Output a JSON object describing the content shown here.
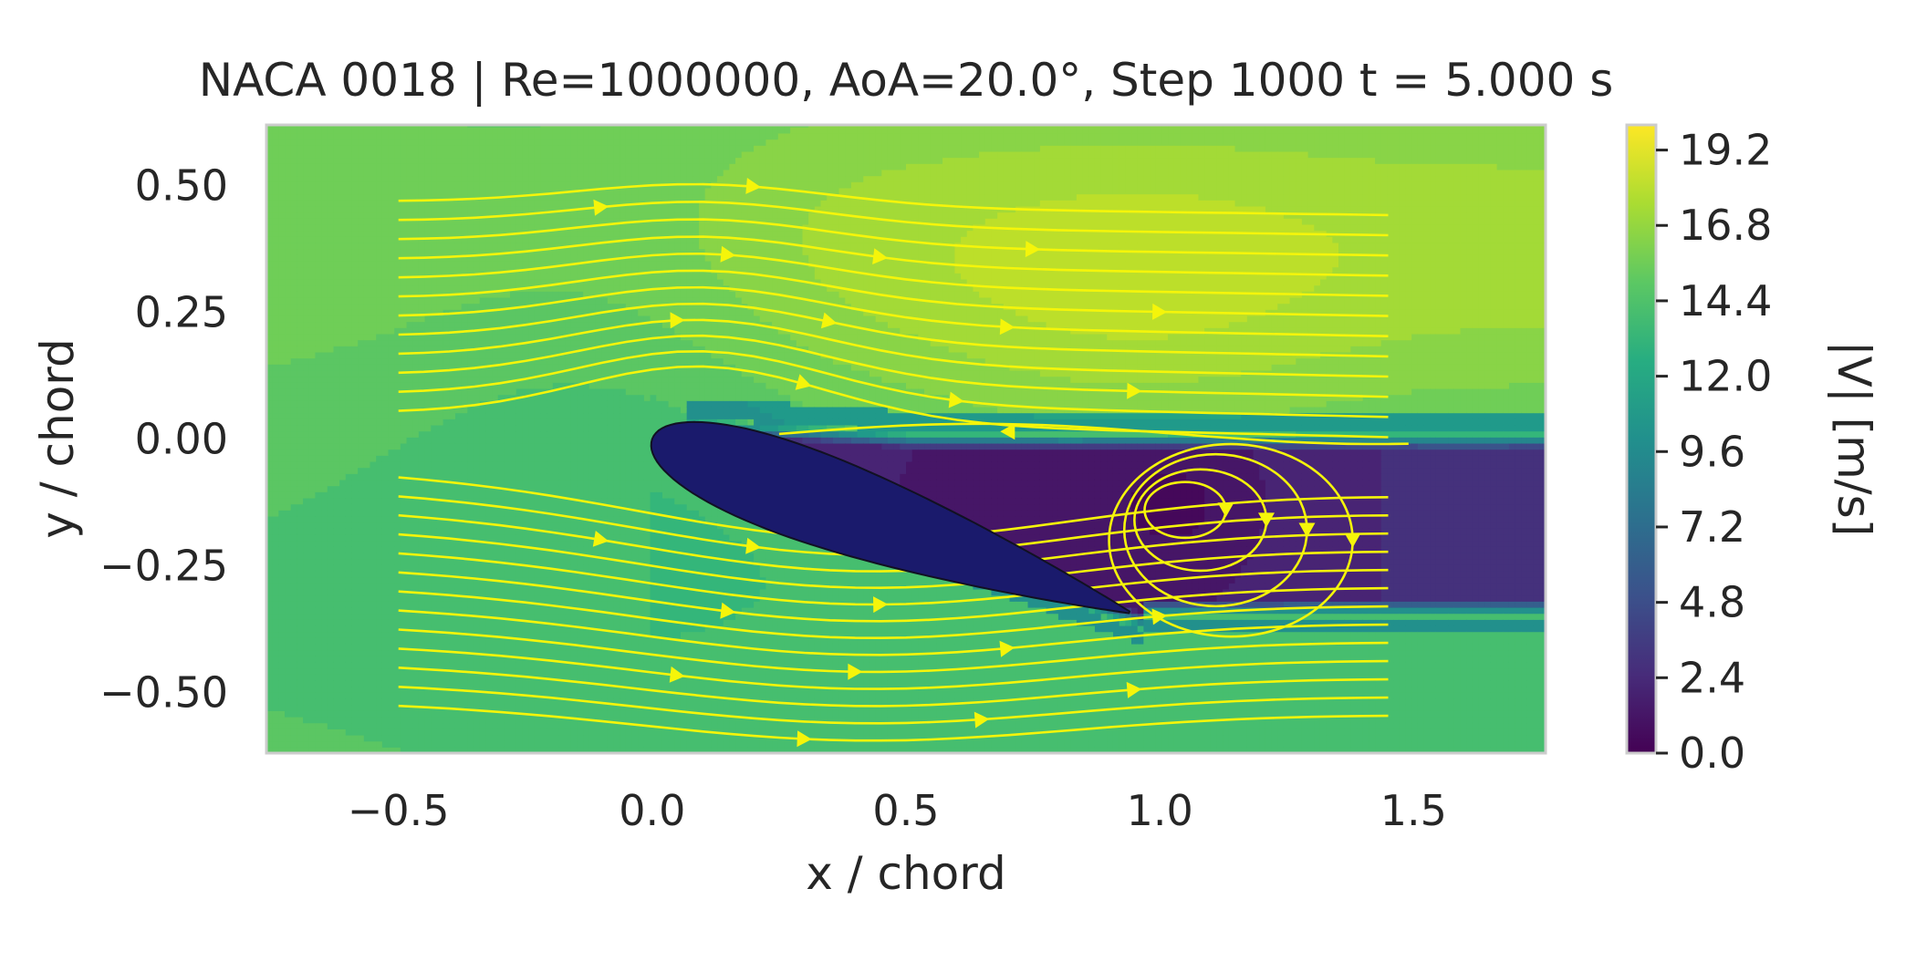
{
  "chart_data": {
    "type": "heatmap",
    "title": "NACA 0018 | Re=1000000, AoA=20.0°, Step 1000   t = 5.000 s",
    "xlabel": "x / chord",
    "ylabel": "y / chord",
    "xlim": [
      -0.76,
      1.76
    ],
    "ylim": [
      -0.62,
      0.62
    ],
    "xticks": [
      -0.5,
      0.0,
      0.5,
      1.0,
      1.5
    ],
    "xtick_labels": [
      "−0.5",
      "0.0",
      "0.5",
      "1.0",
      "1.5"
    ],
    "yticks": [
      0.5,
      0.25,
      0.0,
      -0.25,
      -0.5
    ],
    "ytick_labels": [
      "0.50",
      "0.25",
      "0.00",
      "−0.25",
      "−0.50"
    ],
    "grid": false,
    "field": "|V| [m/s] filled contours, viridis colormap",
    "airfoil": {
      "name": "NACA 0018",
      "thickness": 0.18,
      "angle_of_attack_deg": 20.0,
      "chord": 1.0,
      "color": "#1a1a6c"
    },
    "streamline_color": "#f5f50a",
    "colorbar": {
      "label": "|V| [m/s]",
      "range": [
        0.0,
        20.0
      ],
      "ticks": [
        0.0,
        2.4,
        4.8,
        7.2,
        9.6,
        12.0,
        14.4,
        16.8,
        19.2
      ],
      "tick_labels": [
        "0.0",
        "2.4",
        "4.8",
        "7.2",
        "9.6",
        "12.0",
        "14.4",
        "16.8",
        "19.2"
      ],
      "colormap": "viridis"
    }
  }
}
